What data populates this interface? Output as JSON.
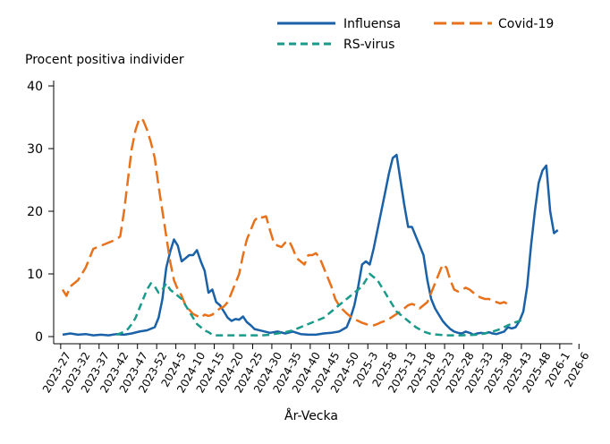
{
  "chart_data": {
    "type": "line",
    "ylabel": "Procent positiva individer",
    "xlabel": "År-Vecka",
    "ylim": [
      0,
      40
    ],
    "yticks": [
      0,
      10,
      20,
      30,
      40
    ],
    "grid": false,
    "legend_position": "top-right",
    "x_tick_labels": [
      "2023-27",
      "2023-32",
      "2023-37",
      "2023-42",
      "2023-47",
      "2023-52",
      "2024-5",
      "2024-10",
      "2024-15",
      "2024-20",
      "2024-25",
      "2024-30",
      "2024-35",
      "2024-40",
      "2024-45",
      "2024-50",
      "2025-3",
      "2025-8",
      "2025-13",
      "2025-18",
      "2025-23",
      "2025-28",
      "2025-33",
      "2025-38",
      "2025-43",
      "2025-48",
      "2026-1",
      "2026-6"
    ],
    "x_index_note": "x values are week index, 0 = 2023-27, one per week",
    "series": [
      {
        "name": "Influensa",
        "color": "#1a61a8",
        "dash": "solid",
        "points": [
          [
            0,
            0.3
          ],
          [
            2,
            0.5
          ],
          [
            4,
            0.3
          ],
          [
            6,
            0.4
          ],
          [
            8,
            0.2
          ],
          [
            10,
            0.3
          ],
          [
            12,
            0.2
          ],
          [
            14,
            0.4
          ],
          [
            16,
            0.3
          ],
          [
            18,
            0.5
          ],
          [
            20,
            0.8
          ],
          [
            22,
            1.0
          ],
          [
            24,
            1.5
          ],
          [
            25,
            3
          ],
          [
            26,
            6
          ],
          [
            27,
            11
          ],
          [
            28,
            13.5
          ],
          [
            29,
            15.5
          ],
          [
            30,
            14.5
          ],
          [
            31,
            12
          ],
          [
            32,
            12.5
          ],
          [
            33,
            13
          ],
          [
            34,
            13
          ],
          [
            35,
            13.8
          ],
          [
            36,
            12
          ],
          [
            37,
            10.5
          ],
          [
            38,
            7
          ],
          [
            39,
            7.5
          ],
          [
            40,
            5.5
          ],
          [
            41,
            5
          ],
          [
            42,
            4
          ],
          [
            43,
            3
          ],
          [
            44,
            2.5
          ],
          [
            45,
            2.8
          ],
          [
            46,
            2.7
          ],
          [
            47,
            3.2
          ],
          [
            48,
            2.3
          ],
          [
            49,
            1.8
          ],
          [
            50,
            1.2
          ],
          [
            52,
            0.9
          ],
          [
            54,
            0.6
          ],
          [
            56,
            0.8
          ],
          [
            58,
            0.5
          ],
          [
            60,
            0.8
          ],
          [
            62,
            0.4
          ],
          [
            64,
            0.3
          ],
          [
            66,
            0.3
          ],
          [
            68,
            0.5
          ],
          [
            70,
            0.6
          ],
          [
            72,
            0.8
          ],
          [
            74,
            1.5
          ],
          [
            75,
            3
          ],
          [
            76,
            5
          ],
          [
            77,
            8
          ],
          [
            78,
            11.5
          ],
          [
            79,
            12
          ],
          [
            80,
            11.5
          ],
          [
            81,
            14
          ],
          [
            82,
            17
          ],
          [
            83,
            20
          ],
          [
            84,
            23
          ],
          [
            85,
            26
          ],
          [
            86,
            28.5
          ],
          [
            87,
            29
          ],
          [
            88,
            25
          ],
          [
            89,
            21
          ],
          [
            90,
            17.5
          ],
          [
            91,
            17.5
          ],
          [
            92,
            16
          ],
          [
            93,
            14.5
          ],
          [
            94,
            13
          ],
          [
            95,
            9
          ],
          [
            96,
            6
          ],
          [
            97,
            4.5
          ],
          [
            98,
            3.5
          ],
          [
            99,
            2.5
          ],
          [
            100,
            1.8
          ],
          [
            101,
            1.2
          ],
          [
            102,
            0.8
          ],
          [
            103,
            0.6
          ],
          [
            104,
            0.5
          ],
          [
            105,
            0.8
          ],
          [
            106,
            0.6
          ],
          [
            107,
            0.3
          ],
          [
            108,
            0.5
          ],
          [
            109,
            0.6
          ],
          [
            110,
            0.5
          ],
          [
            111,
            0.7
          ],
          [
            112,
            0.5
          ],
          [
            113,
            0.4
          ],
          [
            114,
            0.6
          ],
          [
            115,
            0.8
          ],
          [
            116,
            1.5
          ],
          [
            117,
            1.3
          ],
          [
            118,
            1.5
          ],
          [
            119,
            2.5
          ],
          [
            120,
            4
          ],
          [
            121,
            8
          ],
          [
            122,
            14.5
          ],
          [
            123,
            20
          ],
          [
            124,
            24.5
          ],
          [
            125,
            26.5
          ],
          [
            126,
            27.3
          ],
          [
            127,
            20
          ],
          [
            128,
            16.5
          ],
          [
            129,
            17
          ]
        ]
      },
      {
        "name": "Covid-19",
        "color": "#e8711b",
        "dash": "dashed",
        "points": [
          [
            0,
            7.5
          ],
          [
            1,
            6.5
          ],
          [
            2,
            8
          ],
          [
            4,
            9
          ],
          [
            6,
            11
          ],
          [
            8,
            14
          ],
          [
            10,
            14.5
          ],
          [
            12,
            15
          ],
          [
            14,
            15.5
          ],
          [
            15,
            16
          ],
          [
            16,
            20
          ],
          [
            17,
            25
          ],
          [
            18,
            30
          ],
          [
            19,
            33
          ],
          [
            20,
            34.8
          ],
          [
            21,
            34.5
          ],
          [
            22,
            33
          ],
          [
            23,
            31
          ],
          [
            24,
            28.5
          ],
          [
            25,
            24
          ],
          [
            26,
            20
          ],
          [
            27,
            16
          ],
          [
            28,
            12
          ],
          [
            29,
            9
          ],
          [
            30,
            7.5
          ],
          [
            31,
            6.5
          ],
          [
            32,
            5
          ],
          [
            33,
            4.3
          ],
          [
            34,
            3.6
          ],
          [
            35,
            3.3
          ],
          [
            36,
            3
          ],
          [
            37,
            3.5
          ],
          [
            38,
            3.3
          ],
          [
            39,
            3.5
          ],
          [
            40,
            4
          ],
          [
            41,
            4.5
          ],
          [
            42,
            4.8
          ],
          [
            43,
            5.5
          ],
          [
            44,
            7
          ],
          [
            45,
            8.5
          ],
          [
            46,
            10
          ],
          [
            47,
            13
          ],
          [
            48,
            15.5
          ],
          [
            49,
            17
          ],
          [
            50,
            18.5
          ],
          [
            51,
            19.2
          ],
          [
            52,
            19
          ],
          [
            53,
            19.2
          ],
          [
            54,
            17
          ],
          [
            55,
            15
          ],
          [
            56,
            14.5
          ],
          [
            57,
            14.3
          ],
          [
            58,
            15
          ],
          [
            59,
            15.3
          ],
          [
            60,
            14
          ],
          [
            61,
            12.5
          ],
          [
            62,
            12
          ],
          [
            63,
            11.5
          ],
          [
            64,
            13
          ],
          [
            65,
            13
          ],
          [
            66,
            13.3
          ],
          [
            67,
            12.5
          ],
          [
            68,
            11
          ],
          [
            69,
            9.5
          ],
          [
            70,
            8
          ],
          [
            71,
            6
          ],
          [
            72,
            5
          ],
          [
            73,
            4.3
          ],
          [
            74,
            3.7
          ],
          [
            75,
            3.2
          ],
          [
            76,
            2.8
          ],
          [
            77,
            2.5
          ],
          [
            78,
            2.2
          ],
          [
            79,
            2.0
          ],
          [
            80,
            1.8
          ],
          [
            81,
            1.8
          ],
          [
            82,
            2.0
          ],
          [
            83,
            2.3
          ],
          [
            84,
            2.5
          ],
          [
            85,
            2.8
          ],
          [
            86,
            3.2
          ],
          [
            87,
            3.6
          ],
          [
            88,
            4
          ],
          [
            89,
            4.5
          ],
          [
            90,
            5
          ],
          [
            91,
            5.2
          ],
          [
            92,
            5
          ],
          [
            93,
            4.5
          ],
          [
            94,
            5
          ],
          [
            95,
            5.5
          ],
          [
            96,
            7
          ],
          [
            97,
            8.5
          ],
          [
            98,
            10
          ],
          [
            99,
            11.5
          ],
          [
            100,
            11
          ],
          [
            101,
            9
          ],
          [
            102,
            7.5
          ],
          [
            103,
            7.2
          ],
          [
            104,
            7.5
          ],
          [
            105,
            7.8
          ],
          [
            106,
            7.5
          ],
          [
            107,
            7
          ],
          [
            108,
            6.5
          ],
          [
            109,
            6.2
          ],
          [
            110,
            6
          ],
          [
            111,
            6
          ],
          [
            112,
            5.8
          ],
          [
            113,
            5.5
          ],
          [
            114,
            5.3
          ],
          [
            115,
            5.5
          ],
          [
            116,
            5.2
          ],
          [
            117,
            5
          ]
        ]
      },
      {
        "name": "RS-virus",
        "color": "#1a9a8a",
        "dash": "dashed",
        "points": [
          [
            14,
            0.3
          ],
          [
            15,
            0.5
          ],
          [
            16,
            0.8
          ],
          [
            17,
            1.2
          ],
          [
            18,
            2
          ],
          [
            19,
            3
          ],
          [
            20,
            4.5
          ],
          [
            21,
            6
          ],
          [
            22,
            7.5
          ],
          [
            23,
            8.5
          ],
          [
            24,
            8
          ],
          [
            25,
            7
          ],
          [
            26,
            7.5
          ],
          [
            27,
            8.5
          ],
          [
            28,
            7.5
          ],
          [
            29,
            7
          ],
          [
            30,
            6.5
          ],
          [
            31,
            6
          ],
          [
            32,
            5
          ],
          [
            33,
            4
          ],
          [
            34,
            3
          ],
          [
            35,
            2
          ],
          [
            36,
            1.5
          ],
          [
            37,
            1
          ],
          [
            38,
            0.7
          ],
          [
            39,
            0.3
          ],
          [
            40,
            0.2
          ],
          [
            52,
            0.2
          ],
          [
            54,
            0.3
          ],
          [
            56,
            0.5
          ],
          [
            58,
            0.7
          ],
          [
            60,
            1
          ],
          [
            62,
            1.5
          ],
          [
            64,
            2
          ],
          [
            66,
            2.5
          ],
          [
            68,
            3
          ],
          [
            70,
            4
          ],
          [
            72,
            5
          ],
          [
            74,
            6
          ],
          [
            76,
            7
          ],
          [
            78,
            8
          ],
          [
            79,
            9
          ],
          [
            80,
            10
          ],
          [
            81,
            9.5
          ],
          [
            82,
            9
          ],
          [
            83,
            8
          ],
          [
            84,
            7
          ],
          [
            85,
            6
          ],
          [
            86,
            5
          ],
          [
            87,
            4
          ],
          [
            88,
            3.5
          ],
          [
            89,
            3
          ],
          [
            90,
            2.5
          ],
          [
            91,
            2
          ],
          [
            92,
            1.5
          ],
          [
            94,
            0.8
          ],
          [
            96,
            0.4
          ],
          [
            100,
            0.2
          ],
          [
            104,
            0.2
          ],
          [
            108,
            0.3
          ],
          [
            110,
            0.5
          ],
          [
            112,
            0.8
          ],
          [
            114,
            1.2
          ],
          [
            116,
            1.8
          ],
          [
            118,
            2.3
          ],
          [
            120,
            2.7
          ]
        ]
      }
    ]
  }
}
